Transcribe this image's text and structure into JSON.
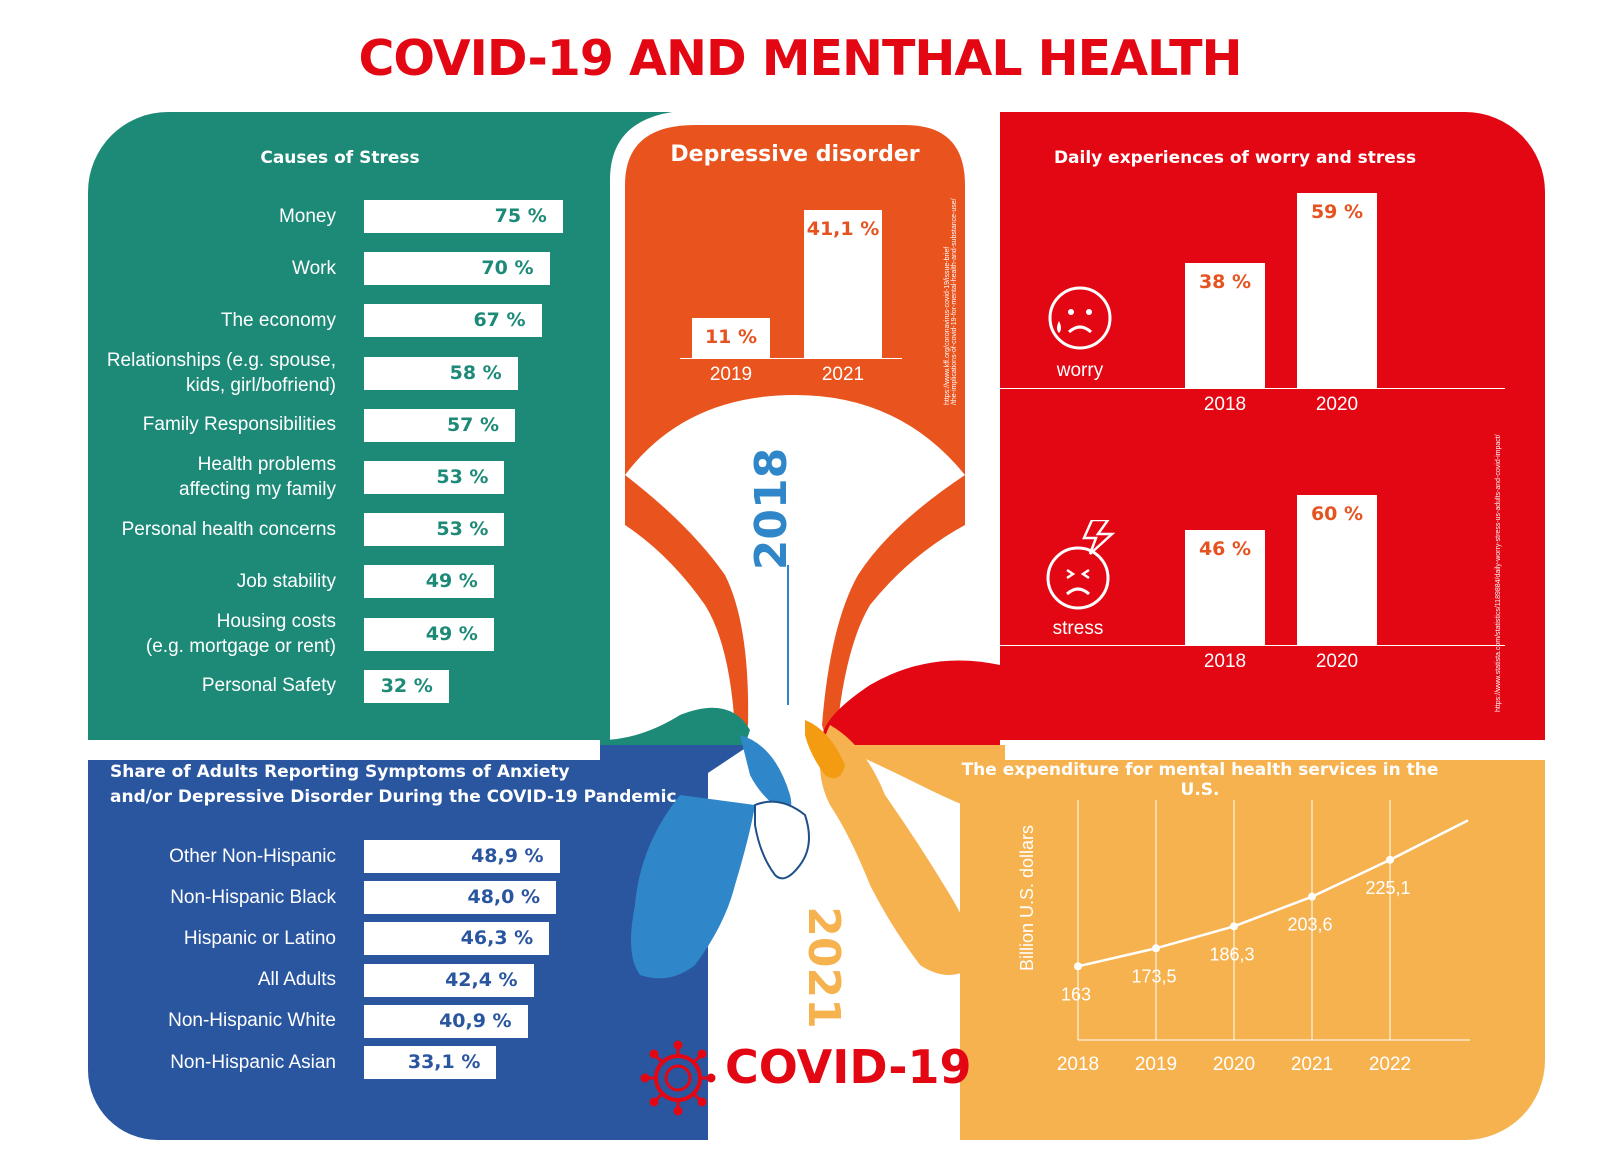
{
  "title": "COVID-19 AND MENTHAL HEALTH",
  "stress": {
    "title": "Causes of Stress",
    "items": [
      {
        "label": "Money",
        "value": "75 %",
        "pct": 75
      },
      {
        "label": "Work",
        "value": "70 %",
        "pct": 70
      },
      {
        "label": "The economy",
        "value": "67 %",
        "pct": 67
      },
      {
        "label": "Relationships (e.g. spouse,\nkids, girl/bofriend)",
        "value": "58 %",
        "pct": 58
      },
      {
        "label": "Family Responsibilities",
        "value": "57 %",
        "pct": 57
      },
      {
        "label": "Health problems\naffecting my family",
        "value": "53 %",
        "pct": 53
      },
      {
        "label": "Personal health concerns",
        "value": "53 %",
        "pct": 53
      },
      {
        "label": "Job stability",
        "value": "49 %",
        "pct": 49
      },
      {
        "label": "Housing costs\n(e.g. mortgage or rent)",
        "value": "49 %",
        "pct": 49
      },
      {
        "label": "Personal Safety",
        "value": "32 %",
        "pct": 32
      }
    ]
  },
  "depressive": {
    "title": "Depressive disorder",
    "bars": [
      {
        "year": "2019",
        "value": "11 %",
        "pct": 11
      },
      {
        "year": "2021",
        "value": "41,1 %",
        "pct": 41.1
      }
    ],
    "source": "https://www.kff.org/coronavirus-covid-19/issue-brief\n/the-implications-of-covid-19-for-mental-health-and-substance-use/"
  },
  "worry_stress": {
    "title": "Daily experiences of worry and stress",
    "worry": {
      "label": "worry",
      "bars": [
        {
          "year": "2018",
          "value": "38 %",
          "pct": 38
        },
        {
          "year": "2020",
          "value": "59 %",
          "pct": 59
        }
      ]
    },
    "stress": {
      "label": "stress",
      "bars": [
        {
          "year": "2018",
          "value": "46 %",
          "pct": 46
        },
        {
          "year": "2020",
          "value": "60 %",
          "pct": 60
        }
      ]
    },
    "source": "https://www.statista.com/statistics/1189884/daily-worry-stress-us-adults-and-covid-impact/"
  },
  "anxiety": {
    "title_line1": "Share of Adults Reporting Symptoms of Anxiety",
    "title_line2": "and/or Depressive Disorder During the COVID-19 Pandemic",
    "items": [
      {
        "label": "Other Non-Hispanic",
        "value": "48,9 %",
        "pct": 48.9
      },
      {
        "label": "Non-Hispanic Black",
        "value": "48,0 %",
        "pct": 48.0
      },
      {
        "label": "Hispanic or Latino",
        "value": "46,3 %",
        "pct": 46.3
      },
      {
        "label": "All Adults",
        "value": "42,4 %",
        "pct": 42.4
      },
      {
        "label": "Non-Hispanic White",
        "value": "40,9 %",
        "pct": 40.9
      },
      {
        "label": "Non-Hispanic Asian",
        "value": "33,1 %",
        "pct": 33.1
      }
    ]
  },
  "expenditure": {
    "title": "The expenditure for mental health services in the U.S.",
    "ylabel": "Billion U.S. dollars"
  },
  "center": {
    "year_top": "2018",
    "year_bottom": "2021",
    "covid_label": "COVID-19"
  },
  "colors": {
    "green": "#1d8a78",
    "red": "#e30613",
    "orange": "#e9531e",
    "blue": "#2a56a0",
    "yellow": "#f6b24f"
  },
  "chart_data": [
    {
      "type": "bar",
      "title": "Causes of Stress",
      "categories": [
        "Money",
        "Work",
        "The economy",
        "Relationships (e.g. spouse, kids, girl/bofriend)",
        "Family Responsibilities",
        "Health problems affecting my family",
        "Personal health concerns",
        "Job stability",
        "Housing costs (e.g. mortgage or rent)",
        "Personal Safety"
      ],
      "values": [
        75,
        70,
        67,
        58,
        57,
        53,
        53,
        49,
        49,
        32
      ]
    },
    {
      "type": "bar",
      "title": "Depressive disorder",
      "categories": [
        "2019",
        "2021"
      ],
      "values": [
        11,
        41.1
      ]
    },
    {
      "type": "bar",
      "title": "Daily experiences of worry and stress",
      "categories": [
        "2018",
        "2020"
      ],
      "series": [
        {
          "name": "worry",
          "values": [
            38,
            59
          ]
        },
        {
          "name": "stress",
          "values": [
            46,
            60
          ]
        }
      ]
    },
    {
      "type": "bar",
      "title": "Share of Adults Reporting Symptoms of Anxiety and/or Depressive Disorder During the COVID-19 Pandemic",
      "categories": [
        "Other Non-Hispanic",
        "Non-Hispanic Black",
        "Hispanic or Latino",
        "All Adults",
        "Non-Hispanic White",
        "Non-Hispanic Asian"
      ],
      "values": [
        48.9,
        48.0,
        46.3,
        42.4,
        40.9,
        33.1
      ]
    },
    {
      "type": "line",
      "title": "The expenditure for mental health services in the U.S.",
      "ylabel": "Billion U.S. dollars",
      "x": [
        "2018",
        "2019",
        "2020",
        "2021",
        "2022"
      ],
      "values": [
        163,
        173.5,
        186.3,
        203.6,
        225.1
      ],
      "labels": [
        "163",
        "173,5",
        "186,3",
        "203,6",
        "225,1"
      ]
    }
  ]
}
